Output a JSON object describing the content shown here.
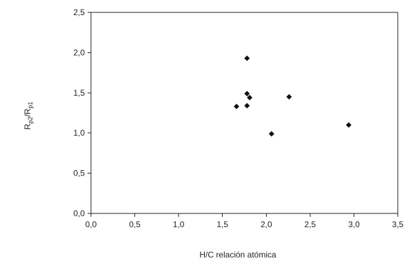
{
  "chart_data": {
    "type": "scatter",
    "xlabel": "H/C relación atómica",
    "ylabel_main": "R",
    "ylabel_sub1": "p2",
    "ylabel_sep": "/R",
    "ylabel_sub2": "p1",
    "xlim": [
      0.0,
      3.5
    ],
    "ylim": [
      0.0,
      2.5
    ],
    "x_ticks": [
      0.0,
      0.5,
      1.0,
      1.5,
      2.0,
      2.5,
      3.0,
      3.5
    ],
    "y_ticks": [
      0.0,
      0.5,
      1.0,
      1.5,
      2.0,
      2.5
    ],
    "x_tick_labels": [
      "0,0",
      "0,5",
      "1,0",
      "1,5",
      "2,0",
      "2,5",
      "3,0",
      "3,5"
    ],
    "y_tick_labels": [
      "0,0",
      "0,5",
      "1,0",
      "1,5",
      "2,0",
      "2,5"
    ],
    "grid": false,
    "marker": "diamond",
    "marker_color": "#111111",
    "points": [
      {
        "x": 1.66,
        "y": 1.33
      },
      {
        "x": 1.78,
        "y": 1.93
      },
      {
        "x": 1.78,
        "y": 1.49
      },
      {
        "x": 1.78,
        "y": 1.34
      },
      {
        "x": 1.81,
        "y": 1.44
      },
      {
        "x": 2.06,
        "y": 0.99
      },
      {
        "x": 2.26,
        "y": 1.45
      },
      {
        "x": 2.94,
        "y": 1.1
      }
    ]
  }
}
